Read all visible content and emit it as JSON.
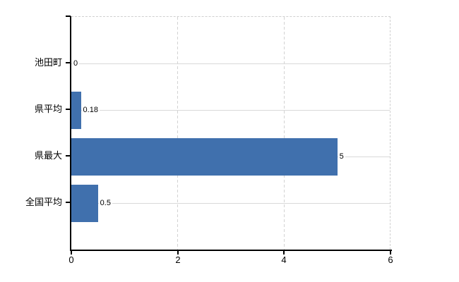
{
  "chart_data": {
    "type": "bar",
    "orientation": "horizontal",
    "title": "",
    "categories": [
      "池田町",
      "県平均",
      "県最大",
      "全国平均"
    ],
    "values": [
      0,
      0.18,
      5,
      0.5
    ],
    "value_labels": [
      "0",
      "0.18",
      "5",
      "0.5"
    ],
    "xlim": [
      0,
      6
    ],
    "x_ticks": [
      0,
      2,
      4,
      6
    ],
    "x_tick_labels": [
      "0",
      "2",
      "4",
      "6"
    ],
    "grid": "on",
    "legend_position": "none",
    "bar_color": "#4070ad",
    "row_line_color": "#d9d9d9",
    "grid_line_color": "#d2d2d2",
    "axis_color": "#000000"
  }
}
